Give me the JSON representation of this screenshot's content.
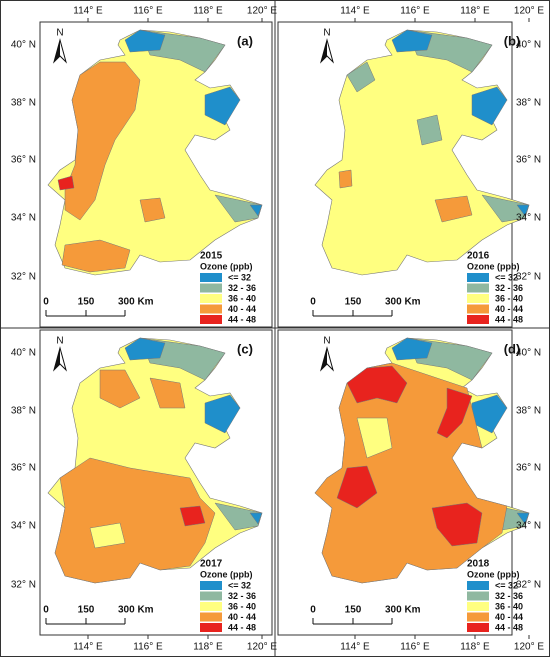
{
  "map": {
    "lon_labels": [
      "114° E",
      "116° E",
      "118° E",
      "120° E"
    ],
    "lat_labels": [
      "40° N",
      "38° N",
      "36° N",
      "34° N",
      "32° N"
    ],
    "north": "N",
    "scale": [
      "0",
      "150",
      "300 Km"
    ],
    "legend_title": "Ozone (ppb)",
    "legend": [
      {
        "label": "<= 32",
        "color": "#1f8fcb"
      },
      {
        "label": "32 - 36",
        "color": "#8fb8a0"
      },
      {
        "label": "36 - 40",
        "color": "#ffff80"
      },
      {
        "label": "40 - 44",
        "color": "#f59a3a"
      },
      {
        "label": "44 - 48",
        "color": "#e8231e"
      }
    ],
    "panels": [
      {
        "label": "(a)",
        "year": "2015"
      },
      {
        "label": "(b)",
        "year": "2016"
      },
      {
        "label": "(c)",
        "year": "2017"
      },
      {
        "label": "(d)",
        "year": "2018"
      }
    ]
  }
}
